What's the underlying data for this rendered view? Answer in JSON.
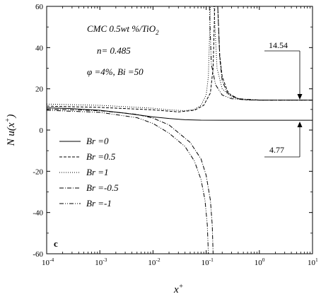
{
  "chart_data": {
    "type": "line",
    "panel_label": "c",
    "xlabel": "x",
    "xlabel_sup": "+",
    "ylabel": "N u(x",
    "ylabel_sup": "+",
    "ylabel_close": ")",
    "xscale": "log",
    "xlim": [
      0.0001,
      10
    ],
    "ylim": [
      -60,
      60
    ],
    "x_ticks": [
      {
        "base": "10",
        "exp": "-4",
        "value": 0.0001
      },
      {
        "base": "10",
        "exp": "-3",
        "value": 0.001
      },
      {
        "base": "10",
        "exp": "-2",
        "value": 0.01
      },
      {
        "base": "10",
        "exp": "-1",
        "value": 0.1
      },
      {
        "base": "10",
        "exp": "0",
        "value": 1
      },
      {
        "base": "10",
        "exp": "1",
        "value": 10
      }
    ],
    "y_ticks": [
      -60,
      -40,
      -20,
      0,
      20,
      40,
      60
    ],
    "annotations": [
      {
        "text": "CMC 0.5wt %/TiO",
        "sub": "2"
      },
      {
        "text": "n= 0.485"
      },
      {
        "text": "φ =4%, Bi =50"
      }
    ],
    "callouts": [
      {
        "text": "14.54",
        "value": 14.54
      },
      {
        "text": "4.77",
        "value": 4.77
      }
    ],
    "series": [
      {
        "name": "Br =0",
        "dash": "solid",
        "x": [
          0.0001,
          0.0003,
          0.001,
          0.003,
          0.01,
          0.02,
          0.04,
          0.08,
          0.2,
          1,
          10
        ],
        "y": [
          10.8,
          10.4,
          9.6,
          8.2,
          6.4,
          5.6,
          5.0,
          4.8,
          4.77,
          4.77,
          4.77
        ]
      },
      {
        "name": "Br =0.5",
        "dash": "dash",
        "x": [
          0.0001,
          0.001,
          0.01,
          0.03,
          0.06,
          0.09,
          0.12,
          0.135,
          0.145
        ],
        "y": [
          11.6,
          11.0,
          9.8,
          8.8,
          9.6,
          12.0,
          18.0,
          30.0,
          60.0
        ],
        "x2": [
          0.165,
          0.18,
          0.2,
          0.25,
          0.3,
          0.4,
          0.6,
          1,
          10
        ],
        "y2": [
          60.0,
          36.0,
          26.0,
          19.0,
          16.5,
          15.2,
          14.6,
          14.54,
          14.54
        ]
      },
      {
        "name": "Br =1",
        "dash": "dot",
        "x": [
          0.0001,
          0.001,
          0.01,
          0.02,
          0.04,
          0.06,
          0.08,
          0.1,
          0.11,
          0.12
        ],
        "y": [
          12.6,
          12.0,
          10.6,
          9.8,
          9.4,
          10.0,
          12.0,
          17.0,
          26.0,
          60.0
        ],
        "x2": [
          0.14,
          0.16,
          0.2,
          0.3,
          0.5,
          1,
          10
        ],
        "y2": [
          60.0,
          30.0,
          20.0,
          16.0,
          14.8,
          14.54,
          14.54
        ]
      },
      {
        "name": "Br =-0.5",
        "dash": "dashdot",
        "x": [
          0.0001,
          0.001,
          0.005,
          0.01,
          0.02,
          0.05,
          0.08,
          0.1,
          0.12,
          0.13,
          0.135
        ],
        "y": [
          10.2,
          9.4,
          7.6,
          5.8,
          2.5,
          -6.0,
          -14.0,
          -22.0,
          -34.0,
          -46.0,
          -60.0
        ],
        "x2": [
          0.165,
          0.18,
          0.2,
          0.25,
          0.4,
          1,
          10
        ],
        "y2": [
          60.0,
          35.0,
          24.0,
          18.0,
          15.2,
          14.54,
          14.54
        ]
      },
      {
        "name": "Br =-1",
        "dash": "dashdotdot",
        "x": [
          0.0001,
          0.001,
          0.005,
          0.01,
          0.02,
          0.04,
          0.06,
          0.08,
          0.095,
          0.105,
          0.11
        ],
        "y": [
          9.6,
          8.6,
          6.0,
          3.2,
          -1.5,
          -8.0,
          -15.0,
          -24.0,
          -34.0,
          -46.0,
          -60.0
        ],
        "x2": [
          0.115,
          0.125,
          0.15,
          0.2,
          0.3,
          0.6,
          1,
          10
        ],
        "y2": [
          60.0,
          32.0,
          22.0,
          17.0,
          15.2,
          14.6,
          14.54,
          14.54
        ]
      }
    ]
  }
}
